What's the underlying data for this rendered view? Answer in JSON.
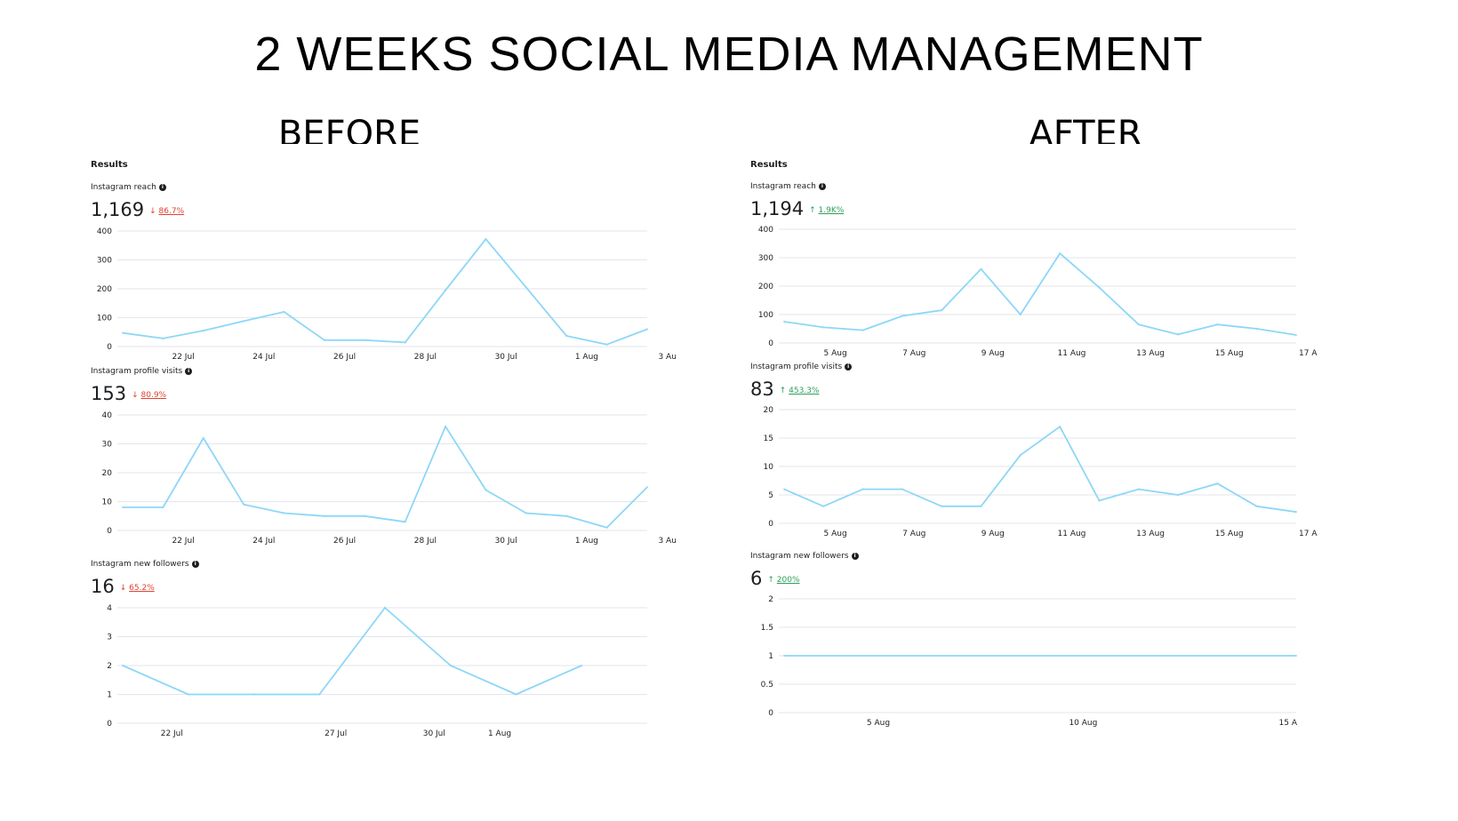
{
  "title": "2 WEEKS SOCIAL MEDIA MANAGEMENT",
  "colors": {
    "line": "#8dd7f7",
    "grid": "#e4e6eb",
    "down": "#e0422f",
    "up": "#2e9e5b"
  },
  "before": {
    "label": "BEFORE",
    "results_title": "Results",
    "metrics": [
      {
        "name": "Instagram reach",
        "value": "1,169",
        "change": "86.7%",
        "direction": "down",
        "arrow": "↓"
      },
      {
        "name": "Instagram profile visits",
        "value": "153",
        "change": "80.9%",
        "direction": "down",
        "arrow": "↓"
      },
      {
        "name": "Instagram new followers",
        "value": "16",
        "change": "65.2%",
        "direction": "down",
        "arrow": "↓"
      }
    ]
  },
  "after": {
    "label": "AFTER",
    "results_title": "Results",
    "metrics": [
      {
        "name": "Instagram reach",
        "value": "1,194",
        "change": "1.9K%",
        "direction": "up",
        "arrow": "↑"
      },
      {
        "name": "Instagram profile visits",
        "value": "83",
        "change": "453.3%",
        "direction": "up",
        "arrow": "↑"
      },
      {
        "name": "Instagram new followers",
        "value": "6",
        "change": "200%",
        "direction": "up",
        "arrow": "↑"
      }
    ]
  },
  "chart_data": [
    {
      "id": "before-reach",
      "type": "line",
      "title": "Instagram reach",
      "x": [
        20.5,
        21.5,
        22.5,
        23.5,
        24.5,
        25.5,
        26.5,
        27.5,
        28.5,
        29.5,
        30.5,
        31.5,
        32.5,
        33.5
      ],
      "values": [
        47,
        28,
        55,
        88,
        120,
        22,
        22,
        14,
        195,
        372,
        205,
        37,
        7,
        60
      ],
      "ylim": [
        0,
        400
      ],
      "yticks": [
        0,
        100,
        200,
        300,
        400
      ],
      "xlim": [
        20.5,
        33.5
      ],
      "xticks": [
        {
          "x": 22,
          "label": "22 Jul"
        },
        {
          "x": 24,
          "label": "24 Jul"
        },
        {
          "x": 26,
          "label": "26 Jul"
        },
        {
          "x": 28,
          "label": "28 Jul"
        },
        {
          "x": 30,
          "label": "30 Jul"
        },
        {
          "x": 32,
          "label": "1 Aug"
        },
        {
          "x": 34,
          "label": "3 Au"
        }
      ]
    },
    {
      "id": "before-visits",
      "type": "line",
      "title": "Instagram profile visits",
      "x": [
        20.5,
        21.5,
        22.5,
        23.5,
        24.5,
        25.5,
        26.5,
        27.5,
        28.5,
        29.5,
        30.5,
        31.5,
        32.5,
        33.5
      ],
      "values": [
        8,
        8,
        32,
        9,
        6,
        5,
        5,
        3,
        36,
        14,
        6,
        5,
        1,
        15
      ],
      "ylim": [
        0,
        40
      ],
      "yticks": [
        0,
        10,
        20,
        30,
        40
      ],
      "xlim": [
        20.5,
        33.5
      ],
      "xticks": [
        {
          "x": 22,
          "label": "22 Jul"
        },
        {
          "x": 24,
          "label": "24 Jul"
        },
        {
          "x": 26,
          "label": "26 Jul"
        },
        {
          "x": 28,
          "label": "28 Jul"
        },
        {
          "x": 30,
          "label": "30 Jul"
        },
        {
          "x": 32,
          "label": "1 Aug"
        },
        {
          "x": 34,
          "label": "3 Au"
        }
      ]
    },
    {
      "id": "before-followers",
      "type": "line",
      "title": "Instagram new followers",
      "x": [
        20.5,
        22.5,
        24.5,
        26.5,
        28.5,
        30.5,
        32.5,
        34.5
      ],
      "values": [
        2,
        1,
        1,
        1,
        4,
        2,
        1,
        2
      ],
      "ylim": [
        0,
        4
      ],
      "yticks": [
        0,
        1,
        2,
        3,
        4
      ],
      "xlim": [
        20.5,
        36.5
      ],
      "xticks": [
        {
          "x": 22,
          "label": "22 Jul"
        },
        {
          "x": 27,
          "label": "27 Jul"
        },
        {
          "x": 30,
          "label": "30 Jul"
        },
        {
          "x": 32,
          "label": "1 Aug"
        }
      ]
    },
    {
      "id": "after-reach",
      "type": "line",
      "title": "Instagram reach",
      "x": [
        3.7,
        4.7,
        5.7,
        6.7,
        7.7,
        8.7,
        9.7,
        10.7,
        11.7,
        12.7,
        13.7,
        14.7,
        15.7,
        16.7
      ],
      "values": [
        75,
        55,
        45,
        95,
        115,
        260,
        100,
        315,
        195,
        65,
        30,
        65,
        50,
        28
      ],
      "ylim": [
        0,
        400
      ],
      "yticks": [
        0,
        100,
        200,
        300,
        400
      ],
      "xlim": [
        3.7,
        16.7
      ],
      "xticks": [
        {
          "x": 5,
          "label": "5 Aug"
        },
        {
          "x": 7,
          "label": "7 Aug"
        },
        {
          "x": 9,
          "label": "9 Aug"
        },
        {
          "x": 11,
          "label": "11 Aug"
        },
        {
          "x": 13,
          "label": "13 Aug"
        },
        {
          "x": 15,
          "label": "15 Aug"
        },
        {
          "x": 17,
          "label": "17 A"
        }
      ]
    },
    {
      "id": "after-visits",
      "type": "line",
      "title": "Instagram profile visits",
      "x": [
        3.7,
        4.7,
        5.7,
        6.7,
        7.7,
        8.7,
        9.7,
        10.7,
        11.7,
        12.7,
        13.7,
        14.7,
        15.7,
        16.7
      ],
      "values": [
        6,
        3,
        6,
        6,
        3,
        3,
        12,
        17,
        4,
        6,
        5,
        7,
        3,
        2
      ],
      "ylim": [
        0,
        20
      ],
      "yticks": [
        0,
        5,
        10,
        15,
        20
      ],
      "xlim": [
        3.7,
        16.7
      ],
      "xticks": [
        {
          "x": 5,
          "label": "5 Aug"
        },
        {
          "x": 7,
          "label": "7 Aug"
        },
        {
          "x": 9,
          "label": "9 Aug"
        },
        {
          "x": 11,
          "label": "11 Aug"
        },
        {
          "x": 13,
          "label": "13 Aug"
        },
        {
          "x": 15,
          "label": "15 Aug"
        },
        {
          "x": 17,
          "label": "17 A"
        }
      ]
    },
    {
      "id": "after-followers",
      "type": "line",
      "title": "Instagram new followers",
      "x": [
        2.7,
        15.2
      ],
      "values": [
        1,
        1
      ],
      "ylim": [
        0,
        2
      ],
      "yticks": [
        0,
        0.5,
        1,
        1.5,
        2
      ],
      "xlim": [
        2.7,
        15.2
      ],
      "xticks": [
        {
          "x": 5,
          "label": "5 Aug"
        },
        {
          "x": 10,
          "label": "10 Aug"
        },
        {
          "x": 15,
          "label": "15 A"
        }
      ]
    }
  ]
}
